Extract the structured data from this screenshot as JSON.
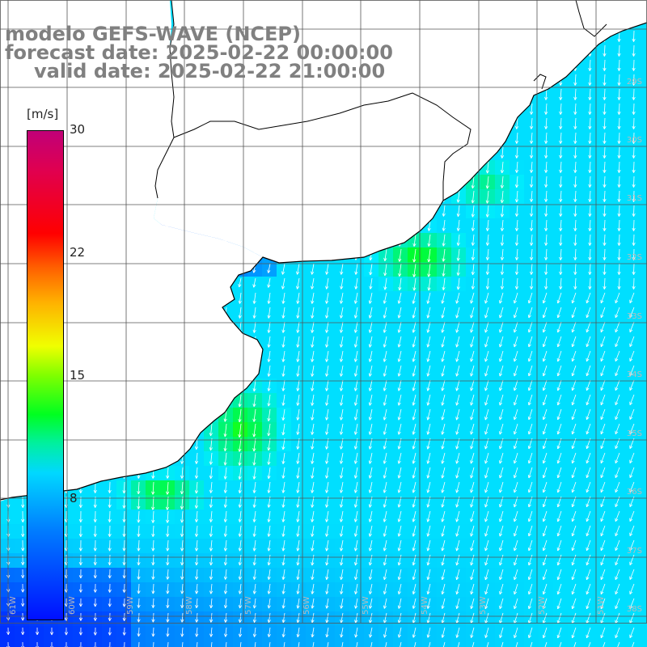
{
  "titles": {
    "model": "modelo GEFS-WAVE (NCEP)",
    "forecast": "forecast date: 2025-02-22 00:00:00",
    "valid": "valid date: 2025-02-22 21:00:00"
  },
  "colorbar": {
    "unit": "[m/s]",
    "ticks": [
      "30",
      "22",
      "15",
      "8"
    ],
    "colors": {
      "low": "#0010ff",
      "mid": "#00d8ff",
      "green": "#00ff20",
      "yellow": "#f0ff00",
      "red": "#ff0000",
      "top": "#c00078"
    }
  },
  "lat_labels": [
    "29S",
    "30S",
    "31S",
    "32S",
    "33S",
    "34S",
    "35S",
    "36S",
    "37S",
    "38S",
    "39S",
    "40S"
  ],
  "lon_labels": [
    "61W",
    "60W",
    "59W",
    "58W",
    "57W",
    "56W",
    "55W",
    "54W",
    "53W",
    "52W",
    "51W"
  ],
  "wind": {
    "background": "#ffffff",
    "land_color": "#ffffff",
    "coast_color": "#000000",
    "grid_color": "#555555",
    "arrow_color": "#ffffff",
    "predominant_direction": "from north-northeast toward south-southwest"
  }
}
